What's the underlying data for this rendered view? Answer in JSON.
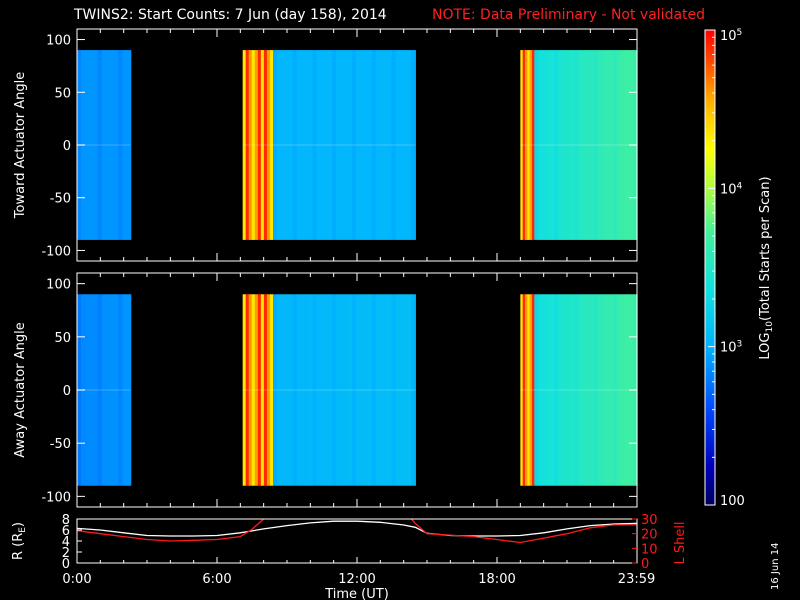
{
  "title": "TWINS2: Start Counts:  7 Jun (day 158), 2014",
  "note": "NOTE: Data Preliminary - Not validated",
  "stamp": "16 Jun 14",
  "colors": {
    "note": "#ff2020",
    "missing": "#000000",
    "lshell": "#ff1a1a",
    "rcurve": "#ffffff"
  },
  "colorbar": {
    "label_base": "LOG",
    "label_sub": "10",
    "label_rest": "(Total Starts per Scan)",
    "min": 100,
    "max": 100000,
    "scale": "log",
    "ticks": [
      {
        "value": 100,
        "label": "100"
      },
      {
        "value": 1000,
        "label": "10",
        "exp": "3"
      },
      {
        "value": 10000,
        "label": "10",
        "exp": "4"
      },
      {
        "value": 100000,
        "label": "10",
        "exp": "5"
      }
    ]
  },
  "chart_data": [
    {
      "type": "heatmap",
      "ylabel": "Toward Actuator Angle",
      "ylim": [
        -110,
        110
      ],
      "yticks": [
        100,
        50,
        0,
        -50,
        -100
      ],
      "ytick_labels": [
        "100",
        "50",
        "0",
        "-50",
        "-100"
      ],
      "x_unit": "hours UT",
      "xlim": [
        0,
        24
      ],
      "data_segments": [
        {
          "start": 0.0,
          "end": 2.3,
          "log_counts_left": 2.9,
          "log_counts_right": 2.9,
          "note": "low counts"
        },
        {
          "start": 7.1,
          "end": 8.4,
          "log_counts": 4.7,
          "note": "high counts band"
        },
        {
          "start": 8.4,
          "end": 14.5,
          "log_counts_left": 3.05,
          "log_counts_right": 3.05
        },
        {
          "start": 19.0,
          "end": 19.6,
          "log_counts": 4.7,
          "note": "high counts band"
        },
        {
          "start": 19.6,
          "end": 24.0,
          "log_counts_left": 3.35,
          "log_counts_right": 3.7
        }
      ],
      "angle_range": [
        -90,
        90
      ]
    },
    {
      "type": "heatmap",
      "ylabel": "Away Actuator Angle",
      "ylim": [
        -110,
        110
      ],
      "yticks": [
        100,
        50,
        0,
        -50,
        -100
      ],
      "ytick_labels": [
        "100",
        "50",
        "0",
        "-50",
        "-100"
      ],
      "x_unit": "hours UT",
      "xlim": [
        0,
        24
      ],
      "data_segments": [
        {
          "start": 0.0,
          "end": 2.3,
          "log_counts_left": 2.85,
          "log_counts_right": 2.9,
          "note": "low counts"
        },
        {
          "start": 7.1,
          "end": 8.4,
          "log_counts": 4.7,
          "note": "high counts band"
        },
        {
          "start": 8.4,
          "end": 14.5,
          "log_counts_left": 3.05,
          "log_counts_right": 3.1
        },
        {
          "start": 19.0,
          "end": 19.6,
          "log_counts": 4.7,
          "note": "high counts band"
        },
        {
          "start": 19.6,
          "end": 24.0,
          "log_counts_left": 3.35,
          "log_counts_right": 3.7
        }
      ],
      "angle_range": [
        -90,
        90
      ]
    },
    {
      "type": "line",
      "xlabel": "Time (UT)",
      "xticks": [
        0,
        6,
        12,
        18,
        23.98
      ],
      "xtick_labels": [
        "0:00",
        "6:00",
        "12:00",
        "18:00",
        "23:59"
      ],
      "xlim": [
        0,
        24
      ],
      "ylabel": "R (R",
      "ylabel_sub": "E",
      "ylabel_close": ")",
      "ylim": [
        0,
        8
      ],
      "yticks": [
        0,
        2,
        4,
        6,
        8
      ],
      "ytick_labels": [
        "0",
        "2",
        "4",
        "6",
        "8"
      ],
      "y2label": "L Shell",
      "y2lim": [
        0,
        30
      ],
      "y2ticks": [
        0,
        10,
        20,
        30
      ],
      "y2tick_labels": [
        "0",
        "10",
        "20",
        "30"
      ],
      "series": [
        {
          "axis": "left",
          "x": [
            0,
            1,
            2,
            3,
            4,
            5,
            6,
            7,
            8,
            9,
            10,
            11,
            12,
            13,
            14,
            14.5,
            15,
            16,
            17,
            18,
            19,
            20,
            21,
            22,
            23,
            24
          ],
          "y": [
            6.3,
            6.0,
            5.5,
            5.0,
            4.9,
            4.9,
            5.0,
            5.5,
            6.2,
            6.8,
            7.3,
            7.6,
            7.6,
            7.4,
            6.9,
            6.5,
            5.4,
            5.0,
            4.9,
            4.9,
            5.0,
            5.5,
            6.2,
            6.8,
            7.1,
            7.2
          ]
        },
        {
          "axis": "right",
          "x": [
            0,
            1,
            2,
            3,
            4,
            5,
            6,
            7,
            7.5,
            8,
            8.4,
            14.1,
            14.5,
            15,
            16,
            17,
            18,
            19,
            20,
            21,
            22,
            23,
            24
          ],
          "y": [
            22,
            20,
            18,
            16,
            15,
            15.5,
            16,
            18,
            23,
            30,
            34,
            34,
            27,
            20,
            19,
            18,
            16,
            14,
            17,
            20,
            24,
            26,
            26
          ]
        }
      ]
    }
  ]
}
